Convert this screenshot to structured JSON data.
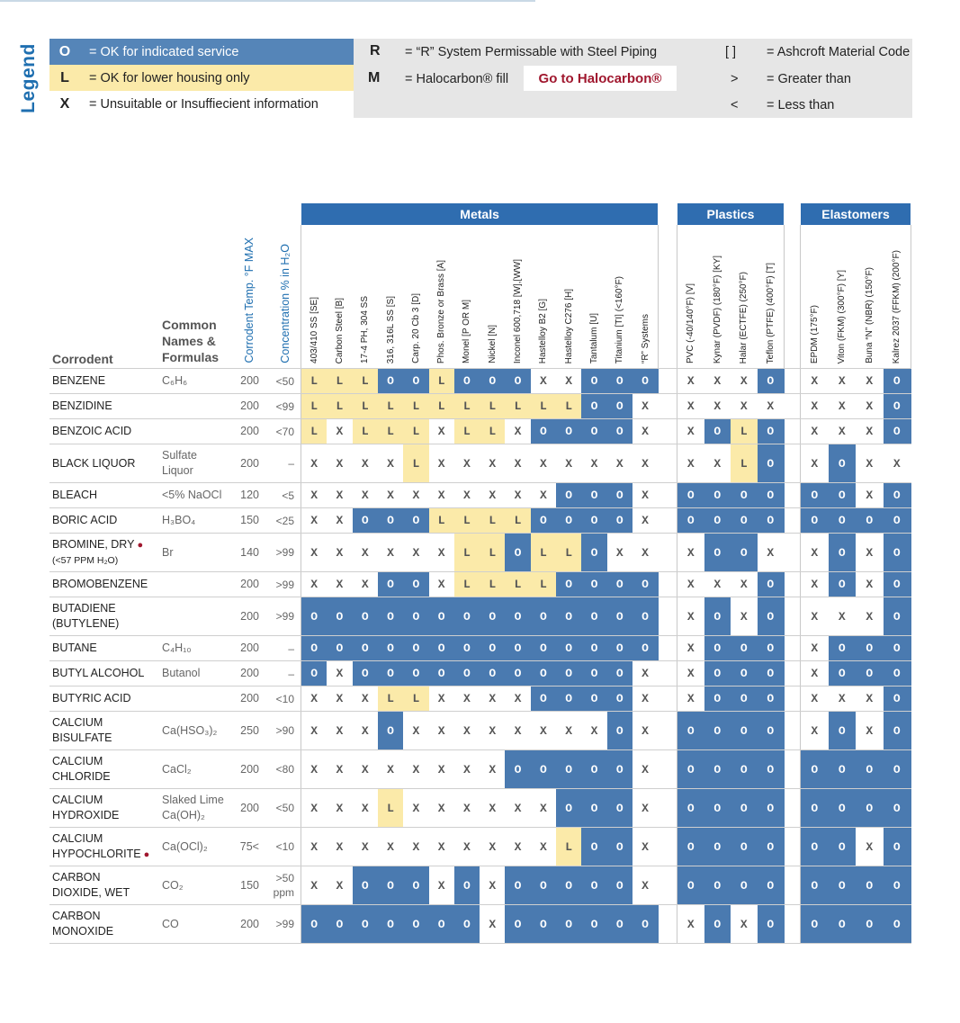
{
  "legend": {
    "title": "Legend",
    "items": [
      {
        "symbol": "O",
        "text": "= OK for indicated service",
        "color": "#5585b8"
      },
      {
        "symbol": "L",
        "text": "= OK for lower housing only",
        "color": "#fbeaa9"
      },
      {
        "symbol": "X",
        "text": "= Unsuitable or Insuffiecient information"
      }
    ],
    "right_items": [
      {
        "symbol": "R",
        "text": "= “R” System Permissable with Steel Piping"
      },
      {
        "symbol": "M",
        "text": "= Halocarbon® fill"
      },
      {
        "symbol": "[ ]",
        "text": "= Ashcroft Material Code"
      },
      {
        "symbol": ">",
        "text": "= Greater than"
      },
      {
        "symbol": "<",
        "text": "= Less than"
      }
    ],
    "halocarbon_link": "Go to Halocarbon®"
  },
  "table": {
    "headers": {
      "corrodent": "Corrodent",
      "common_names": "Common\nNames &\nFormulas",
      "temp": "Corrodent Temp. °F MAX",
      "conc": "Concentration % in H₂O"
    },
    "groups": [
      {
        "label": "Metals",
        "columns": [
          "403/410 SS [SE]",
          "Carbon Steel [B]",
          "17-4 PH, 304 SS",
          "316, 316L SS [S]",
          "Carp. 20 Cb 3 [D]",
          "Phos. Bronze or Brass [A]",
          "Monel [P OR M]",
          "Nickel [N]",
          "Inconel 600,718 [W],[WW]",
          "Hastelloy B2 [G]",
          "Hastelloy C276 [H]",
          "Tantalum [U]",
          "Titanium [TI] (<160°F)",
          "“R” Systems"
        ]
      },
      {
        "label": "Plastics",
        "columns": [
          "PVC (-40/140°F) [V]",
          "Kynar (PVDF) (180°F) [KY]",
          "Halar (ECTFE) (250°F)",
          "Teflon (PTFE) (400°F) [T]"
        ]
      },
      {
        "label": "Elastomers",
        "columns": [
          "EPDM (175°F)",
          "Viton (FKM) (300°F) [Y]",
          "Buna “N” (NBR) (150°F)",
          "Kalrez 2037 (FFKM) (200°F)"
        ]
      }
    ],
    "rows": [
      {
        "name": "BENZENE",
        "formula": "C₆H₆",
        "temp": "200",
        "conc": "<50",
        "metals": "LLLOOLOOOXXOOO",
        "plastics": "XXXO",
        "elastomers": "XXXO"
      },
      {
        "name": "BENZIDINE",
        "formula": "",
        "temp": "200",
        "conc": "<99",
        "metals": "LLLLLLLLLLLOOX",
        "plastics": "XXXX",
        "elastomers": "XXXO"
      },
      {
        "name": "BENZOIC ACID",
        "formula": "",
        "temp": "200",
        "conc": "<70",
        "metals": "LXLLLXLLXOOOOX",
        "plastics": "XOLO",
        "elastomers": "XXXO"
      },
      {
        "name": "BLACK LIQUOR",
        "formula": "Sulfate\nLiquor",
        "temp": "200",
        "conc": "–",
        "metals": "XXXXLXXXXXXXXX",
        "plastics": "XXLO",
        "elastomers": "XOXX"
      },
      {
        "name": "BLEACH",
        "formula": "<5% NaOCl",
        "temp": "120",
        "conc": "<5",
        "metals": "XXXXXXXXXXOOOX",
        "plastics": "OOOO",
        "elastomers": "OOXO"
      },
      {
        "name": "BORIC ACID",
        "formula": "H₃BO₄",
        "temp": "150",
        "conc": "<25",
        "metals": "XXOOOLLLLOOOOX",
        "plastics": "OOOO",
        "elastomers": "OOOO"
      },
      {
        "name": "BROMINE, DRY",
        "note": "(<57 PPM H₂O)",
        "hazard": true,
        "formula": "Br",
        "temp": "140",
        "conc": ">99",
        "metals": "XXXXXXLLOLLOXX",
        "plastics": "XOOX",
        "elastomers": "XOXO"
      },
      {
        "name": "BROMOBENZENE",
        "formula": "",
        "temp": "200",
        "conc": ">99",
        "metals": "XXXOOXLLLLOOOO",
        "plastics": "XXXO",
        "elastomers": "XOXO"
      },
      {
        "name": "BUTADIENE\n(BUTYLENE)",
        "formula": "",
        "temp": "200",
        "conc": ">99",
        "metals": "OOOOOOOOOOOOOO",
        "plastics": "XOXO",
        "elastomers": "XXXO"
      },
      {
        "name": "BUTANE",
        "formula": "C₄H₁₀",
        "temp": "200",
        "conc": "–",
        "metals": "OOOOOOOOOOOOOO",
        "plastics": "XOOO",
        "elastomers": "XOOO"
      },
      {
        "name": "BUTYL ALCOHOL",
        "formula": "Butanol",
        "temp": "200",
        "conc": "–",
        "metals": "OXOOOOOOOOOOOX",
        "plastics": "XOOO",
        "elastomers": "XOOO"
      },
      {
        "name": "BUTYRIC ACID",
        "formula": "",
        "temp": "200",
        "conc": "<10",
        "metals": "XXXLLXXXXOOOOX",
        "plastics": "XOOO",
        "elastomers": "XXXO"
      },
      {
        "name": "CALCIUM\nBISULFATE",
        "formula": "Ca(HSO₃)₂",
        "temp": "250",
        "conc": ">90",
        "metals": "XXXOXXXXXXXXOX",
        "plastics": "OOOO",
        "elastomers": "XOXO"
      },
      {
        "name": "CALCIUM\nCHLORIDE",
        "formula": "CaCl₂",
        "temp": "200",
        "conc": "<80",
        "metals": "XXXXXXXXOOOOOX",
        "plastics": "OOOO",
        "elastomers": "OOOO"
      },
      {
        "name": "CALCIUM\nHYDROXIDE",
        "formula": "Slaked Lime\nCa(OH)₂",
        "temp": "200",
        "conc": "<50",
        "metals": "XXXLXXXXXXOOOX",
        "plastics": "OOOO",
        "elastomers": "OOOO"
      },
      {
        "name": "CALCIUM\nHYPOCHLORITE",
        "hazard": true,
        "formula": "Ca(OCl)₂",
        "temp": "75<",
        "conc": "<10",
        "metals": "XXXXXXXXXXLOOX",
        "plastics": "OOOO",
        "elastomers": "OOXO"
      },
      {
        "name": "CARBON\nDIOXIDE, WET",
        "formula": "CO₂",
        "temp": "150",
        "conc": ">50\nppm",
        "metals": "XXOOOXOXOOOOOX",
        "plastics": "OOOO",
        "elastomers": "OOOO"
      },
      {
        "name": "CARBON\nMONOXIDE",
        "formula": "CO",
        "temp": "200",
        "conc": ">99",
        "metals": "OOOOOOOXOOOOOO",
        "plastics": "XOXO",
        "elastomers": "OOOO"
      }
    ],
    "colors": {
      "O": "#4a7ab0",
      "L": "#fbeaa9",
      "X": "#ffffff",
      "header": "#2f6db0"
    }
  }
}
